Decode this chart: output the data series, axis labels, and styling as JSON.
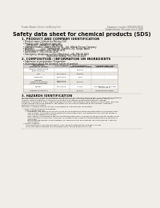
{
  "background_color": "#f0ede8",
  "header_left": "Product Name: Lithium Ion Battery Cell",
  "header_right_line1": "Substance number: SDS-049-00010",
  "header_right_line2": "Establishment / Revision: Dec.1.2010",
  "title": "Safety data sheet for chemical products (SDS)",
  "section1_title": "1. PRODUCT AND COMPANY IDENTIFICATION",
  "section1_lines": [
    "  • Product name: Lithium Ion Battery Cell",
    "  • Product code: Cylindrical-type cell",
    "       UR18650U, UR18650U, UR18650A",
    "  • Company name:    Sanyo Electric Co., Ltd., Mobile Energy Company",
    "  • Address:          2001  Kamitosaari, Sumoto-City, Hyogo, Japan",
    "  • Telephone number:  +81-799-26-4111",
    "  • Fax number:  +81-799-26-4129",
    "  • Emergency telephone number (Weekday): +81-799-26-3042",
    "                                   (Night and Holiday) +81-799-26-4129"
  ],
  "section2_title": "2. COMPOSITION / INFORMATION ON INGREDIENTS",
  "section2_intro": "  • Substance or preparation: Preparation",
  "section2_sub": "  • Information about the chemical nature of product:",
  "table_col_starts": [
    5,
    55,
    80,
    115,
    158
  ],
  "table_headers": [
    "Component\n(chemical name)",
    "CAS number",
    "Concentration /\nConcentration range",
    "Classification and\nhazard labeling"
  ],
  "table_rows": [
    [
      "Lithium cobalt oxide\n(LiMnCo(PO4))",
      "-",
      "30-50%",
      "-"
    ],
    [
      "Iron",
      "7439-89-6",
      "15-25%",
      "-"
    ],
    [
      "Aluminum",
      "7429-90-5",
      "2-5%",
      "-"
    ],
    [
      "Graphite\n(Natural graphite)\n(Artificial graphite)",
      "7782-42-5\n7782-42-5",
      "10-25%",
      "-"
    ],
    [
      "Copper",
      "7440-50-8",
      "5-10%",
      "Sensitization of the skin\ngroup No.2"
    ],
    [
      "Organic electrolyte",
      "-",
      "10-20%",
      "Inflammable liquid"
    ]
  ],
  "section3_title": "3. HAZARDS IDENTIFICATION",
  "section3_body": [
    "For the battery cell, chemical substances are stored in a hermetically sealed metal case, designed to withstand",
    "temperatures and prevent abnormalities during normal use. As a result, during normal use, there is no",
    "physical danger of ignition or explosion and there is no danger of hazardous materials leakage.",
    "However, if exposed to a fire, added mechanical shocks, decomposed, when electric current flows, gas may",
    "be gas release cannot be operated. The battery cell case will be breached at the extreme, hazardous",
    "materials may be released.",
    "Moreover, if heated strongly by the surrounding fire, soot gas may be emitted."
  ],
  "section3_bullet1": "  • Most important hazard and effects:",
  "section3_b1_sub": [
    "     Human health effects:",
    "          Inhalation: The release of the electrolyte has an anesthesia action and stimulates in respiratory tract.",
    "          Skin contact: The release of the electrolyte stimulates a skin. The electrolyte skin contact causes a",
    "          sore and stimulation on the skin.",
    "          Eye contact: The release of the electrolyte stimulates eyes. The electrolyte eye contact causes a sore",
    "          and stimulation on the eye. Especially, a substance that causes a strong inflammation of the eyes is",
    "          contained.",
    "          Environmental effects: Since a battery cell remains in the environment, do not throw out it into the",
    "          environment."
  ],
  "section3_bullet2": "  • Specific hazards:",
  "section3_b2_sub": [
    "       If the electrolyte contacts with water, it will generate detrimental hydrogen fluoride.",
    "       Since the used electrolyte is inflammable liquid, do not bring close to fire."
  ],
  "line_color": "#aaaaaa",
  "text_color": "#111111",
  "header_text_color": "#666666",
  "table_header_bg": "#d0ccc8",
  "table_row_bg1": "#ffffff",
  "table_row_bg2": "#e8e5e0"
}
